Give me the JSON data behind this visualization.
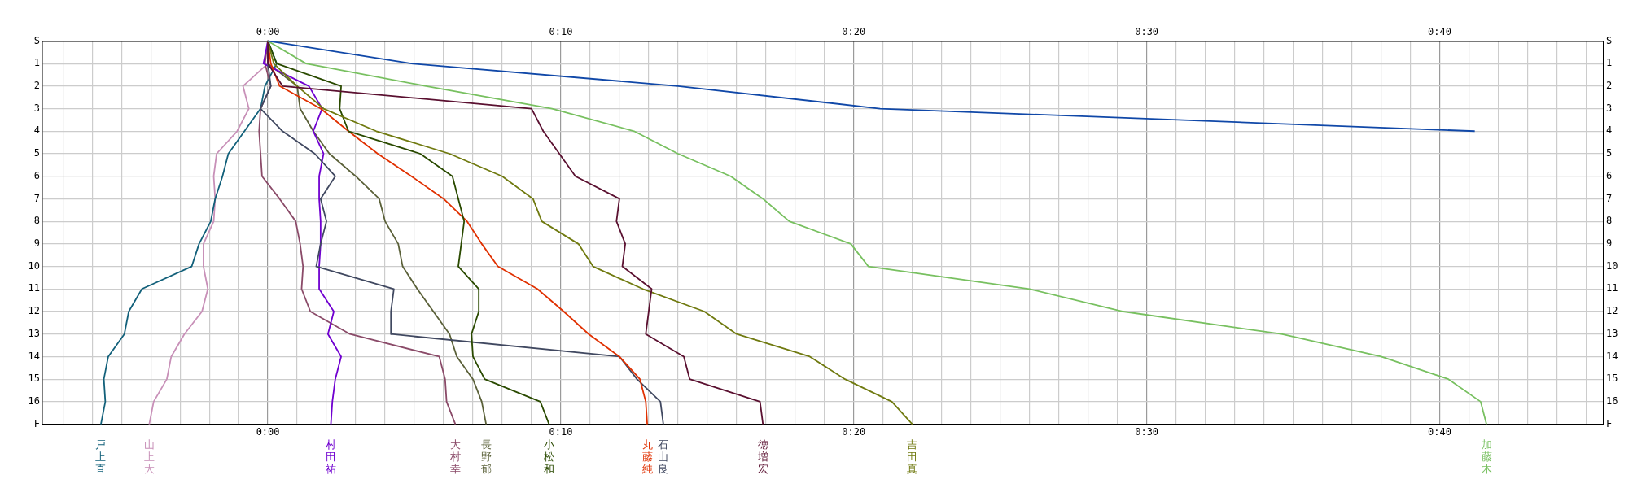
{
  "chart_data": {
    "type": "line",
    "orientation": "horizontal",
    "grid": true,
    "categories": [
      "S",
      "1",
      "2",
      "3",
      "4",
      "5",
      "6",
      "7",
      "8",
      "9",
      "10",
      "11",
      "12",
      "13",
      "14",
      "15",
      "16",
      "F"
    ],
    "xlim": [
      -7.7,
      45.6
    ],
    "xticks": [
      {
        "value": -7,
        "label": null
      },
      {
        "value": -6,
        "label": null
      },
      {
        "value": -5,
        "label": null
      },
      {
        "value": -4,
        "label": null
      },
      {
        "value": -3,
        "label": null
      },
      {
        "value": -2,
        "label": null
      },
      {
        "value": -1,
        "label": null
      },
      {
        "value": 0,
        "label": "0:00"
      },
      {
        "value": 1,
        "label": null
      },
      {
        "value": 2,
        "label": null
      },
      {
        "value": 3,
        "label": null
      },
      {
        "value": 4,
        "label": null
      },
      {
        "value": 5,
        "label": null
      },
      {
        "value": 6,
        "label": null
      },
      {
        "value": 7,
        "label": null
      },
      {
        "value": 8,
        "label": null
      },
      {
        "value": 9,
        "label": null
      },
      {
        "value": 10,
        "label": "0:10"
      },
      {
        "value": 11,
        "label": null
      },
      {
        "value": 12,
        "label": null
      },
      {
        "value": 13,
        "label": null
      },
      {
        "value": 14,
        "label": null
      },
      {
        "value": 15,
        "label": null
      },
      {
        "value": 16,
        "label": null
      },
      {
        "value": 17,
        "label": null
      },
      {
        "value": 18,
        "label": null
      },
      {
        "value": 19,
        "label": null
      },
      {
        "value": 20,
        "label": "0:20"
      },
      {
        "value": 21,
        "label": null
      },
      {
        "value": 22,
        "label": null
      },
      {
        "value": 23,
        "label": null
      },
      {
        "value": 24,
        "label": null
      },
      {
        "value": 25,
        "label": null
      },
      {
        "value": 26,
        "label": null
      },
      {
        "value": 27,
        "label": null
      },
      {
        "value": 28,
        "label": null
      },
      {
        "value": 29,
        "label": null
      },
      {
        "value": 30,
        "label": "0:30"
      },
      {
        "value": 31,
        "label": null
      },
      {
        "value": 32,
        "label": null
      },
      {
        "value": 33,
        "label": null
      },
      {
        "value": 34,
        "label": null
      },
      {
        "value": 35,
        "label": null
      },
      {
        "value": 36,
        "label": null
      },
      {
        "value": 37,
        "label": null
      },
      {
        "value": 38,
        "label": null
      },
      {
        "value": 39,
        "label": null
      },
      {
        "value": 40,
        "label": "0:40"
      },
      {
        "value": 41,
        "label": null
      },
      {
        "value": 42,
        "label": null
      },
      {
        "value": 43,
        "label": null
      },
      {
        "value": 44,
        "label": null
      },
      {
        "value": 45,
        "label": null
      }
    ],
    "x2lim": [
      -7.7,
      45.6
    ],
    "x2ticks": [
      {
        "value": 0,
        "label": "0:00"
      },
      {
        "value": 10,
        "label": "0:10"
      },
      {
        "value": 20,
        "label": "0:20"
      },
      {
        "value": 30,
        "label": "0:30"
      },
      {
        "value": 40,
        "label": "0:40"
      }
    ],
    "series": [
      {
        "color": "#1048a8",
        "values": [
          0,
          4.9,
          14.0,
          20.9,
          41.2,
          null,
          null,
          null,
          null,
          null,
          null,
          null,
          null,
          null,
          null,
          null,
          null,
          null
        ]
      },
      {
        "name": "加藤木",
        "color": "#78c060",
        "values": [
          0,
          1.3,
          5.4,
          9.7,
          12.5,
          14.0,
          15.8,
          16.9,
          17.8,
          19.9,
          20.5,
          26.0,
          29.2,
          34.6,
          38.0,
          40.3,
          41.4,
          41.6
        ]
      },
      {
        "name": "徳増宏",
        "color": "#5a1030",
        "values": [
          0,
          0,
          0.5,
          9.0,
          9.4,
          9.95,
          10.5,
          12.0,
          11.9,
          12.2,
          12.1,
          13.1,
          13.0,
          12.9,
          14.2,
          14.4,
          16.8,
          16.9
        ]
      },
      {
        "name": "吉田真",
        "color": "#707a10",
        "values": [
          0,
          0.2,
          1.0,
          1.9,
          3.7,
          6.2,
          8.0,
          9.05,
          9.35,
          10.6,
          11.1,
          12.8,
          14.9,
          16.0,
          18.5,
          19.7,
          21.3,
          22.0
        ]
      },
      {
        "name": "小松和",
        "color": "#2a4a00",
        "values": [
          0,
          0.3,
          2.5,
          2.45,
          2.75,
          5.2,
          6.3,
          6.5,
          6.7,
          6.6,
          6.5,
          7.2,
          7.2,
          6.95,
          7.0,
          7.4,
          9.3,
          9.6
        ]
      },
      {
        "name": "丸藤純",
        "color": "#e03000",
        "values": [
          0,
          0.1,
          0.4,
          1.8,
          2.75,
          3.75,
          4.9,
          6.0,
          6.8,
          7.3,
          7.85,
          9.2,
          10.1,
          10.95,
          12.0,
          12.7,
          12.9,
          12.95
        ]
      },
      {
        "name": "石山良",
        "color": "#404860",
        "values": [
          0,
          0,
          0.1,
          -0.25,
          0.5,
          1.6,
          2.3,
          1.8,
          2.0,
          1.8,
          1.65,
          4.3,
          4.2,
          4.2,
          12.0,
          12.6,
          13.4,
          13.5
        ]
      },
      {
        "name": "村田祐",
        "color": "#7000d0",
        "values": [
          0,
          -0.15,
          1.4,
          1.85,
          1.55,
          1.9,
          1.75,
          1.75,
          1.8,
          1.8,
          1.75,
          1.75,
          2.25,
          2.05,
          2.5,
          2.3,
          2.2,
          2.15
        ]
      },
      {
        "name": "大村幸",
        "color": "#8a4a68",
        "values": [
          0,
          -0.1,
          0.1,
          -0.25,
          -0.3,
          -0.25,
          -0.2,
          0.4,
          0.95,
          1.1,
          1.2,
          1.15,
          1.45,
          2.8,
          5.85,
          6.05,
          6.1,
          6.4
        ]
      },
      {
        "name": "長野郁",
        "color": "#5a6038",
        "values": [
          0,
          0,
          1.0,
          1.1,
          1.55,
          2.1,
          3.0,
          3.8,
          4.0,
          4.45,
          4.6,
          5.1,
          5.65,
          6.2,
          6.45,
          7.0,
          7.3,
          7.45
        ]
      },
      {
        "name": "戸上直",
        "color": "#12607a",
        "values": [
          0,
          0.3,
          -0.1,
          -0.25,
          -0.8,
          -1.35,
          -1.55,
          -1.8,
          -1.95,
          -2.35,
          -2.6,
          -4.3,
          -4.75,
          -4.9,
          -5.45,
          -5.6,
          -5.55,
          -5.7
        ]
      },
      {
        "name": "山上大",
        "color": "#c890b8",
        "values": [
          0,
          0,
          -0.85,
          -0.65,
          -1.05,
          -1.75,
          -1.85,
          -1.8,
          -1.85,
          -2.2,
          -2.2,
          -2.05,
          -2.25,
          -2.85,
          -3.3,
          -3.45,
          -3.9,
          -4.05
        ]
      }
    ]
  }
}
